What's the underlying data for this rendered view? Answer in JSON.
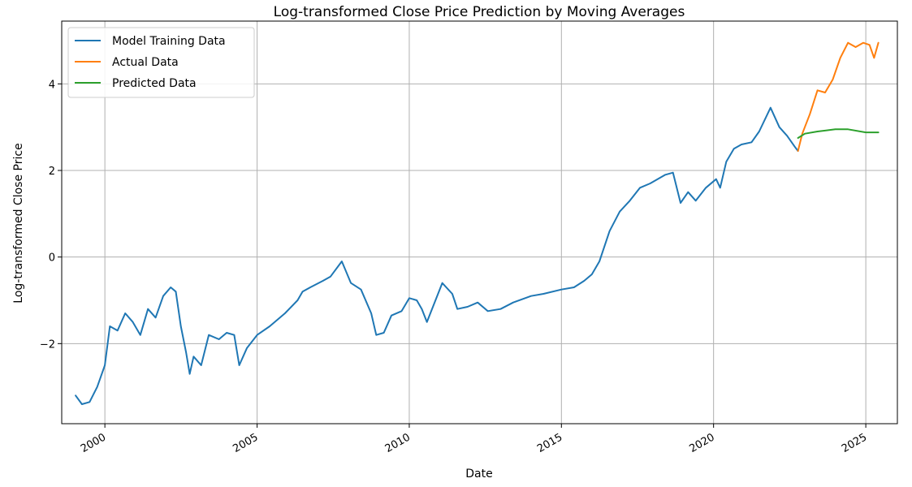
{
  "chart_data": {
    "type": "line",
    "title": "Log-transformed Close Price Prediction by Moving Averages",
    "xlabel": "Date",
    "ylabel": "Log-transformed Close Price",
    "xlim": [
      "1998-08-01",
      "2026-01-15"
    ],
    "ylim": [
      -3.85,
      5.45
    ],
    "x_ticks": [
      {
        "date": "2000-01-01",
        "label": "2000"
      },
      {
        "date": "2005-01-01",
        "label": "2005"
      },
      {
        "date": "2010-01-01",
        "label": "2010"
      },
      {
        "date": "2015-01-01",
        "label": "2015"
      },
      {
        "date": "2020-01-01",
        "label": "2020"
      },
      {
        "date": "2025-01-01",
        "label": "2025"
      }
    ],
    "y_ticks": [
      {
        "value": -2,
        "label": "−2"
      },
      {
        "value": 0,
        "label": "0"
      },
      {
        "value": 2,
        "label": "2"
      },
      {
        "value": 4,
        "label": "4"
      }
    ],
    "grid": true,
    "legend_position": "top-left",
    "series": [
      {
        "name": "Model Training Data",
        "color": "#1f77b4",
        "points": [
          [
            "1999-01-15",
            -3.2
          ],
          [
            "1999-04-01",
            -3.4
          ],
          [
            "1999-07-01",
            -3.35
          ],
          [
            "1999-10-01",
            -3.0
          ],
          [
            "2000-01-01",
            -2.5
          ],
          [
            "2000-03-01",
            -1.6
          ],
          [
            "2000-06-01",
            -1.7
          ],
          [
            "2000-09-01",
            -1.3
          ],
          [
            "2000-12-01",
            -1.5
          ],
          [
            "2001-03-01",
            -1.8
          ],
          [
            "2001-06-01",
            -1.2
          ],
          [
            "2001-09-01",
            -1.4
          ],
          [
            "2001-12-01",
            -0.9
          ],
          [
            "2002-03-01",
            -0.7
          ],
          [
            "2002-05-01",
            -0.8
          ],
          [
            "2002-07-01",
            -1.6
          ],
          [
            "2002-09-01",
            -2.2
          ],
          [
            "2002-10-15",
            -2.7
          ],
          [
            "2002-12-01",
            -2.3
          ],
          [
            "2003-03-01",
            -2.5
          ],
          [
            "2003-06-01",
            -1.8
          ],
          [
            "2003-10-01",
            -1.9
          ],
          [
            "2004-01-01",
            -1.75
          ],
          [
            "2004-04-01",
            -1.8
          ],
          [
            "2004-06-01",
            -2.5
          ],
          [
            "2004-09-01",
            -2.1
          ],
          [
            "2005-01-01",
            -1.8
          ],
          [
            "2005-06-01",
            -1.6
          ],
          [
            "2005-12-01",
            -1.3
          ],
          [
            "2006-05-01",
            -1.0
          ],
          [
            "2006-07-01",
            -0.8
          ],
          [
            "2006-10-01",
            -0.7
          ],
          [
            "2007-03-01",
            -0.55
          ],
          [
            "2007-06-01",
            -0.45
          ],
          [
            "2007-10-15",
            -0.1
          ],
          [
            "2008-02-01",
            -0.6
          ],
          [
            "2008-06-01",
            -0.75
          ],
          [
            "2008-10-01",
            -1.3
          ],
          [
            "2008-12-01",
            -1.8
          ],
          [
            "2009-03-01",
            -1.75
          ],
          [
            "2009-06-01",
            -1.35
          ],
          [
            "2009-10-01",
            -1.25
          ],
          [
            "2010-01-01",
            -0.95
          ],
          [
            "2010-04-01",
            -1.0
          ],
          [
            "2010-06-01",
            -1.2
          ],
          [
            "2010-08-01",
            -1.5
          ],
          [
            "2010-10-01",
            -1.2
          ],
          [
            "2011-02-01",
            -0.6
          ],
          [
            "2011-06-01",
            -0.85
          ],
          [
            "2011-08-01",
            -1.2
          ],
          [
            "2011-12-01",
            -1.15
          ],
          [
            "2012-04-01",
            -1.05
          ],
          [
            "2012-08-01",
            -1.25
          ],
          [
            "2013-01-01",
            -1.2
          ],
          [
            "2013-06-01",
            -1.05
          ],
          [
            "2014-01-01",
            -0.9
          ],
          [
            "2014-06-01",
            -0.85
          ],
          [
            "2015-01-01",
            -0.75
          ],
          [
            "2015-06-01",
            -0.7
          ],
          [
            "2015-10-01",
            -0.55
          ],
          [
            "2016-01-01",
            -0.4
          ],
          [
            "2016-04-01",
            -0.1
          ],
          [
            "2016-08-01",
            0.6
          ],
          [
            "2016-12-01",
            1.05
          ],
          [
            "2017-04-01",
            1.3
          ],
          [
            "2017-08-01",
            1.6
          ],
          [
            "2017-12-01",
            1.7
          ],
          [
            "2018-06-01",
            1.9
          ],
          [
            "2018-09-01",
            1.95
          ],
          [
            "2018-12-01",
            1.25
          ],
          [
            "2019-03-01",
            1.5
          ],
          [
            "2019-06-01",
            1.3
          ],
          [
            "2019-10-01",
            1.6
          ],
          [
            "2020-02-01",
            1.8
          ],
          [
            "2020-03-20",
            1.6
          ],
          [
            "2020-06-01",
            2.2
          ],
          [
            "2020-09-01",
            2.5
          ],
          [
            "2020-12-01",
            2.6
          ],
          [
            "2021-04-01",
            2.65
          ],
          [
            "2021-07-01",
            2.9
          ],
          [
            "2021-11-15",
            3.45
          ],
          [
            "2022-03-01",
            3.0
          ],
          [
            "2022-06-01",
            2.8
          ],
          [
            "2022-09-01",
            2.55
          ],
          [
            "2022-10-10",
            2.45
          ]
        ]
      },
      {
        "name": "Actual Data",
        "color": "#ff7f0e",
        "points": [
          [
            "2022-10-10",
            2.45
          ],
          [
            "2022-12-01",
            2.85
          ],
          [
            "2023-03-01",
            3.3
          ],
          [
            "2023-06-01",
            3.85
          ],
          [
            "2023-09-01",
            3.8
          ],
          [
            "2023-12-01",
            4.1
          ],
          [
            "2024-03-01",
            4.6
          ],
          [
            "2024-06-01",
            4.95
          ],
          [
            "2024-09-01",
            4.85
          ],
          [
            "2024-12-01",
            4.95
          ],
          [
            "2025-02-15",
            4.9
          ],
          [
            "2025-04-10",
            4.6
          ],
          [
            "2025-06-01",
            4.95
          ]
        ]
      },
      {
        "name": "Predicted Data",
        "color": "#2ca02c",
        "points": [
          [
            "2022-10-10",
            2.75
          ],
          [
            "2023-01-01",
            2.85
          ],
          [
            "2023-06-01",
            2.9
          ],
          [
            "2024-01-01",
            2.95
          ],
          [
            "2024-06-01",
            2.95
          ],
          [
            "2025-01-01",
            2.88
          ],
          [
            "2025-06-01",
            2.88
          ]
        ]
      }
    ]
  }
}
